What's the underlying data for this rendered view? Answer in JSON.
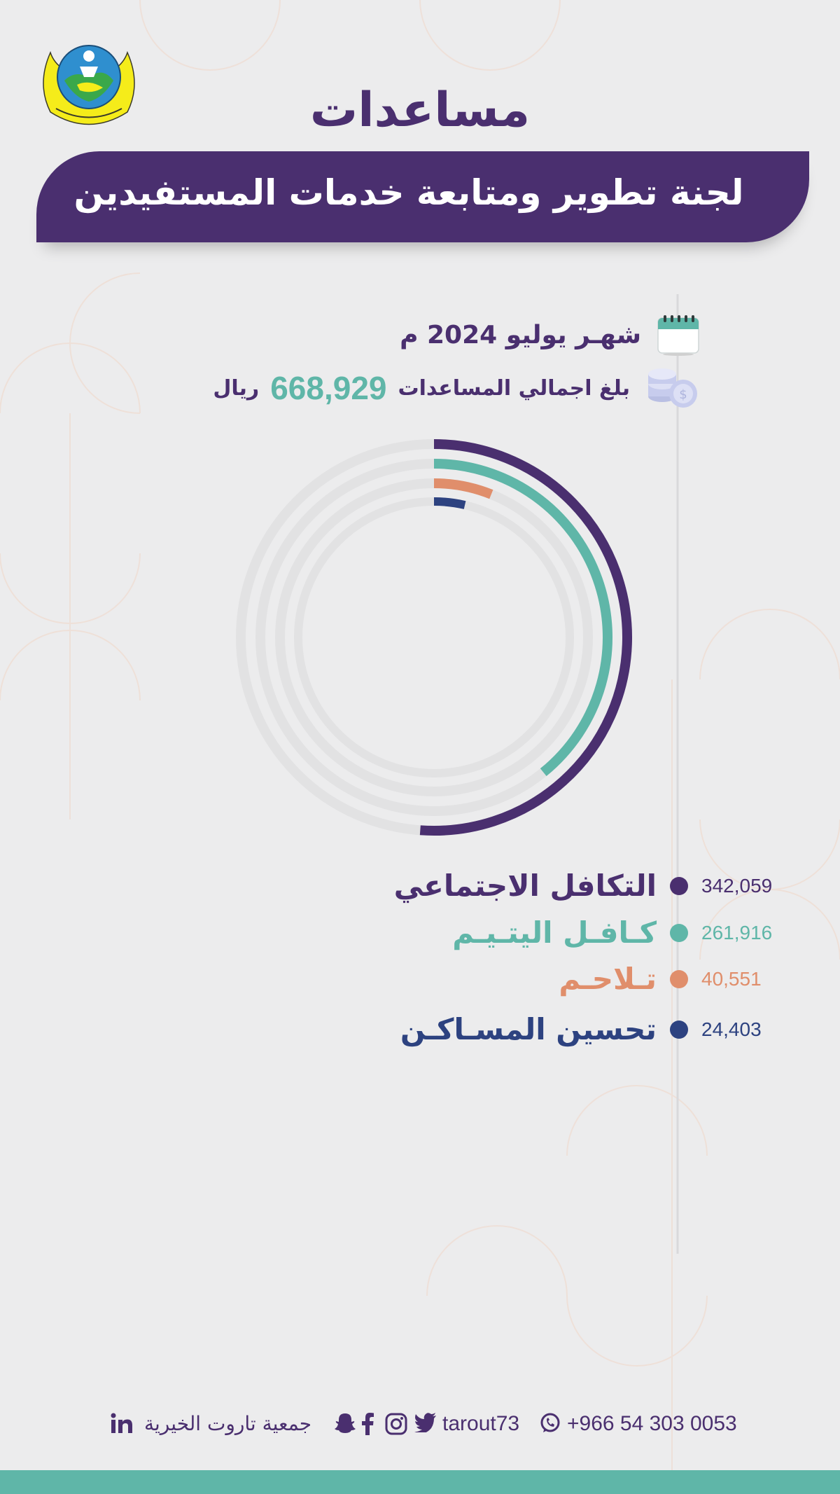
{
  "header": {
    "title": "مساعدات",
    "banner": "لجنة تطوير ومتابعة خدمات المستفيدين",
    "logo_icon": "charity-logo-icon"
  },
  "summary": {
    "month_text": "شهـر يوليو 2024 م",
    "month_icon": "calendar-icon",
    "total_label": "بلغ اجمالي المساعدات",
    "total_value": "668,929",
    "total_unit": "ريال",
    "total_icon": "coins-icon"
  },
  "chart_data": {
    "type": "radial-bar",
    "max_value": 668929,
    "series": [
      {
        "name": "التكافل الاجتماعي",
        "value": 342059,
        "label": "342,059",
        "color": "#4a2f6f"
      },
      {
        "name": "كـافـل اليتـيـم",
        "value": 261916,
        "label": "261,916",
        "color": "#5fb6a8"
      },
      {
        "name": "تـلاحـم",
        "value": 40551,
        "label": "40,551",
        "color": "#e08e6b"
      },
      {
        "name": "تحسين المسـاكـن",
        "value": 24403,
        "label": "24,403",
        "color": "#2d4280"
      }
    ],
    "track_color": "#e2e2e3"
  },
  "footer": {
    "org_name": "جمعية تاروت الخيرية",
    "handle": "tarout73",
    "phone": "+966 54 303 0053",
    "icons": [
      "linkedin-icon",
      "snapchat-icon",
      "facebook-icon",
      "instagram-icon",
      "twitter-icon",
      "whatsapp-icon"
    ]
  },
  "colors": {
    "brand_purple": "#4a2f6f",
    "teal": "#5fb6a8",
    "orange": "#e08e6b",
    "navy": "#2d4280",
    "background": "#ececed"
  }
}
